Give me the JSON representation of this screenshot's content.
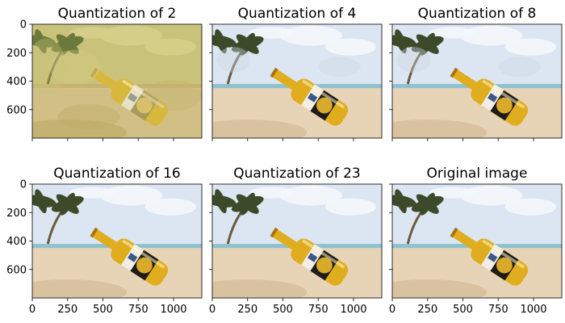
{
  "chart_data": [
    {
      "type": "image",
      "title": "Quantization of 2",
      "xlim": [
        0,
        1200
      ],
      "ylim": [
        800,
        0
      ],
      "xticks": [
        0,
        250,
        500,
        750,
        1000
      ],
      "yticks": [
        0,
        200,
        400,
        600
      ],
      "show_x_ticklabels": false,
      "show_y_ticklabels": true,
      "palette": [
        "#c9c27a",
        "#d6cf8a",
        "#c7b26e",
        "#b9a860",
        "#d2bf86"
      ],
      "description_levels": 2
    },
    {
      "type": "image",
      "title": "Quantization of 4",
      "xlim": [
        0,
        1200
      ],
      "ylim": [
        800,
        0
      ],
      "xticks": [
        0,
        250,
        500,
        750,
        1000
      ],
      "yticks": [
        0,
        200,
        400,
        600
      ],
      "show_x_ticklabels": false,
      "show_y_ticklabels": false,
      "palette": [
        "#dfe6ee",
        "#e8dccb",
        "#cbb08a",
        "#5b4a2a"
      ],
      "description_levels": 4
    },
    {
      "type": "image",
      "title": "Quantization of 8",
      "xlim": [
        0,
        1200
      ],
      "ylim": [
        800,
        0
      ],
      "xticks": [
        0,
        250,
        500,
        750,
        1000
      ],
      "yticks": [
        0,
        200,
        400,
        600
      ],
      "show_x_ticklabels": false,
      "show_y_ticklabels": false,
      "palette": [
        "#dfe6ee",
        "#e9dfcf",
        "#cdb38d",
        "#40351f"
      ],
      "description_levels": 8
    },
    {
      "type": "image",
      "title": "Quantization of 16",
      "xlim": [
        0,
        1200
      ],
      "ylim": [
        800,
        0
      ],
      "xticks": [
        0,
        250,
        500,
        750,
        1000
      ],
      "yticks": [
        0,
        200,
        400,
        600
      ],
      "show_x_ticklabels": true,
      "show_y_ticklabels": true,
      "palette": [
        "#dde7f1",
        "#ece2d3",
        "#d2b994",
        "#2f2718"
      ],
      "description_levels": 16
    },
    {
      "type": "image",
      "title": "Quantization of 23",
      "xlim": [
        0,
        1200
      ],
      "ylim": [
        800,
        0
      ],
      "xticks": [
        0,
        250,
        500,
        750,
        1000
      ],
      "yticks": [
        0,
        200,
        400,
        600
      ],
      "show_x_ticklabels": true,
      "show_y_ticklabels": false,
      "palette": [
        "#dce7f2",
        "#ede3d4",
        "#d3ba96",
        "#2b2416"
      ],
      "description_levels": 23
    },
    {
      "type": "image",
      "title": "Original image",
      "xlim": [
        0,
        1200
      ],
      "ylim": [
        800,
        0
      ],
      "xticks": [
        0,
        250,
        500,
        750,
        1000
      ],
      "yticks": [
        0,
        200,
        400,
        600
      ],
      "show_x_ticklabels": true,
      "show_y_ticklabels": false,
      "palette": [
        "#dbe6f2",
        "#efe6d8",
        "#d6bd98",
        "#2a2315"
      ],
      "description_levels": 0
    }
  ],
  "colors": {
    "sky": "#dbe6f2",
    "cloud": "#f4f7fb",
    "sea": "#8fc2cf",
    "sand": "#e7d3b6",
    "sand_dark": "#cfb48f",
    "palm": "#3d4a2a",
    "beer": "#e0ad1e",
    "beer_dark": "#a8740a",
    "label_dark": "#1e1c18",
    "label_light": "#f0eee6",
    "label_blue": "#1b3d78"
  }
}
